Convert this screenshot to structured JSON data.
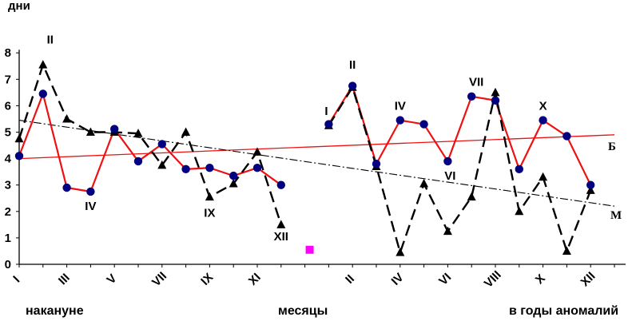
{
  "chart_data": {
    "type": "line",
    "ylabel": "дни",
    "ylim": [
      0,
      8
    ],
    "yticks": [
      "0",
      "1",
      "2",
      "3",
      "4",
      "5",
      "6",
      "7",
      "8"
    ],
    "x_tick_labels": [
      "I",
      "III",
      "V",
      "VII",
      "IX",
      "XI",
      "II",
      "IV",
      "VI",
      "VIII",
      "X",
      "XII"
    ],
    "bottom_labels": {
      "left": "накануне",
      "center": "месяцы",
      "right": "в годы аномалий"
    },
    "line_labels": {
      "red": "Б",
      "dashed": "М"
    },
    "colors": {
      "red": "#ee1111",
      "markers": "#000080",
      "dashed": "#000000",
      "magenta": "#ff00ff"
    },
    "series": [
      {
        "id": "red",
        "segments": [
          {
            "x": [
              1,
              2,
              3,
              4,
              5,
              6,
              7,
              8,
              9,
              10,
              11,
              12
            ],
            "values": [
              4.1,
              6.45,
              2.9,
              2.75,
              5.12,
              3.9,
              4.55,
              3.6,
              3.65,
              3.35,
              3.65,
              3.0
            ]
          },
          {
            "x": [
              14,
              15,
              16,
              17,
              18,
              19,
              20,
              21,
              22,
              23,
              24,
              25
            ],
            "values": [
              5.3,
              6.75,
              3.8,
              5.45,
              5.3,
              3.9,
              6.35,
              6.2,
              3.6,
              5.45,
              4.85,
              3.0
            ]
          }
        ]
      },
      {
        "id": "dashed",
        "segments": [
          {
            "x": [
              1,
              2,
              3,
              4,
              5,
              6,
              7,
              8,
              9,
              10,
              11,
              12
            ],
            "values": [
              4.75,
              7.55,
              5.5,
              5.0,
              5.0,
              4.95,
              3.75,
              5.0,
              2.55,
              3.05,
              4.25,
              1.5
            ]
          },
          {
            "x": [
              14,
              15,
              16,
              17,
              18,
              19,
              20,
              21,
              22,
              23,
              24,
              25
            ],
            "values": [
              5.25,
              6.7,
              3.7,
              0.45,
              3.05,
              1.25,
              2.55,
              6.5,
              2.0,
              3.3,
              0.5,
              2.8
            ]
          }
        ]
      }
    ],
    "trendlines": [
      {
        "id": "red-trend",
        "x": [
          1,
          26
        ],
        "values": [
          4.0,
          4.9
        ]
      },
      {
        "id": "dashed-trend",
        "x": [
          1,
          26
        ],
        "values": [
          5.45,
          2.2
        ]
      }
    ],
    "extra_point": {
      "x": 13.2,
      "y": 0.55
    },
    "annotations": [
      {
        "text": "II",
        "x": 2.3,
        "y": 8.35
      },
      {
        "text": "IV",
        "x": 4.0,
        "y": 2.05
      },
      {
        "text": "IX",
        "x": 9.0,
        "y": 1.8
      },
      {
        "text": "XII",
        "x": 12.0,
        "y": 0.9
      },
      {
        "text": "I",
        "x": 13.9,
        "y": 5.65
      },
      {
        "text": "II",
        "x": 15.0,
        "y": 7.4
      },
      {
        "text": "IV",
        "x": 17.0,
        "y": 5.85
      },
      {
        "text": "VI",
        "x": 19.1,
        "y": 3.2
      },
      {
        "text": "VII",
        "x": 20.2,
        "y": 6.75
      },
      {
        "text": "X",
        "x": 23.0,
        "y": 5.85
      }
    ]
  }
}
